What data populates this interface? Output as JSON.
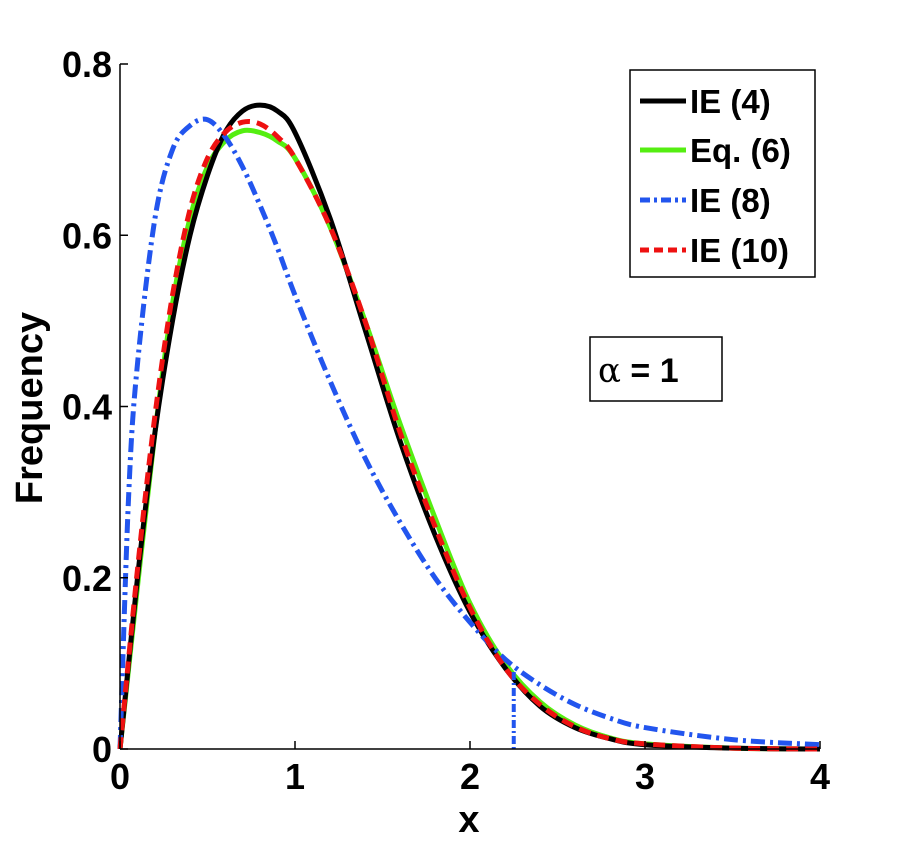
{
  "chart_data": {
    "type": "line",
    "title": "",
    "xlabel": "x",
    "ylabel": "Frequency",
    "xlim": [
      0,
      4
    ],
    "ylim": [
      0,
      0.8
    ],
    "xticks": [
      0,
      1,
      2,
      3,
      4
    ],
    "xtick_labels": [
      "0",
      "1",
      "2",
      "3",
      "4"
    ],
    "yticks": [
      0,
      0.2,
      0.4,
      0.6,
      0.8
    ],
    "ytick_labels": [
      "0",
      "0.2",
      "0.4",
      "0.6",
      "0.8"
    ],
    "grid": false,
    "legend_position": "top-right",
    "annotation": {
      "symbol": "α",
      "text": " = 1"
    },
    "series": [
      {
        "name": "IE (4)",
        "color": "#000000",
        "style": "solid",
        "x": [
          0,
          0.1,
          0.2,
          0.3,
          0.4,
          0.5,
          0.6,
          0.7,
          0.8,
          0.9,
          1.0,
          1.2,
          1.4,
          1.6,
          1.8,
          2.0,
          2.2,
          2.4,
          2.6,
          2.8,
          3.0,
          3.5,
          4.0
        ],
        "y": [
          0,
          0.2,
          0.37,
          0.5,
          0.6,
          0.67,
          0.72,
          0.745,
          0.752,
          0.745,
          0.72,
          0.62,
          0.49,
          0.36,
          0.25,
          0.16,
          0.095,
          0.05,
          0.025,
          0.012,
          0.005,
          0.001,
          0
        ]
      },
      {
        "name": "Eq. (6)",
        "color": "#55ee11",
        "style": "solid",
        "x": [
          0,
          0.1,
          0.2,
          0.3,
          0.4,
          0.5,
          0.6,
          0.7,
          0.8,
          0.9,
          1.0,
          1.2,
          1.4,
          1.6,
          1.8,
          2.0,
          2.2,
          2.4,
          2.6,
          2.8,
          3.0,
          3.5,
          4.0
        ],
        "y": [
          0,
          0.19,
          0.37,
          0.52,
          0.62,
          0.68,
          0.71,
          0.722,
          0.72,
          0.71,
          0.69,
          0.61,
          0.5,
          0.38,
          0.27,
          0.17,
          0.1,
          0.055,
          0.028,
          0.013,
          0.006,
          0.001,
          0
        ]
      },
      {
        "name": "IE (8)",
        "color": "#2255ee",
        "style": "dashdot",
        "x": [
          0,
          0.05,
          0.1,
          0.2,
          0.3,
          0.4,
          0.5,
          0.6,
          0.7,
          0.8,
          0.9,
          1.0,
          1.2,
          1.4,
          1.6,
          1.8,
          2.0,
          2.2,
          2.4,
          2.6,
          2.8,
          3.0,
          3.5,
          4.0
        ],
        "y": [
          0,
          0.3,
          0.45,
          0.62,
          0.7,
          0.728,
          0.735,
          0.715,
          0.68,
          0.635,
          0.585,
          0.53,
          0.43,
          0.34,
          0.265,
          0.2,
          0.148,
          0.105,
          0.075,
          0.052,
          0.036,
          0.025,
          0.011,
          0.005
        ]
      },
      {
        "name": "IE (10)",
        "color": "#ee1111",
        "style": "dashed",
        "x": [
          0,
          0.1,
          0.2,
          0.3,
          0.4,
          0.5,
          0.6,
          0.7,
          0.8,
          0.9,
          1.0,
          1.2,
          1.4,
          1.6,
          1.8,
          2.0,
          2.2,
          2.4,
          2.6,
          2.8,
          3.0,
          3.5,
          4.0
        ],
        "y": [
          0,
          0.21,
          0.39,
          0.53,
          0.63,
          0.69,
          0.72,
          0.732,
          0.73,
          0.715,
          0.69,
          0.61,
          0.5,
          0.37,
          0.26,
          0.165,
          0.095,
          0.052,
          0.026,
          0.012,
          0.006,
          0.001,
          0
        ]
      }
    ],
    "artifact": {
      "x": 2.25,
      "y_top": 0.09,
      "color": "#2255ee"
    }
  }
}
